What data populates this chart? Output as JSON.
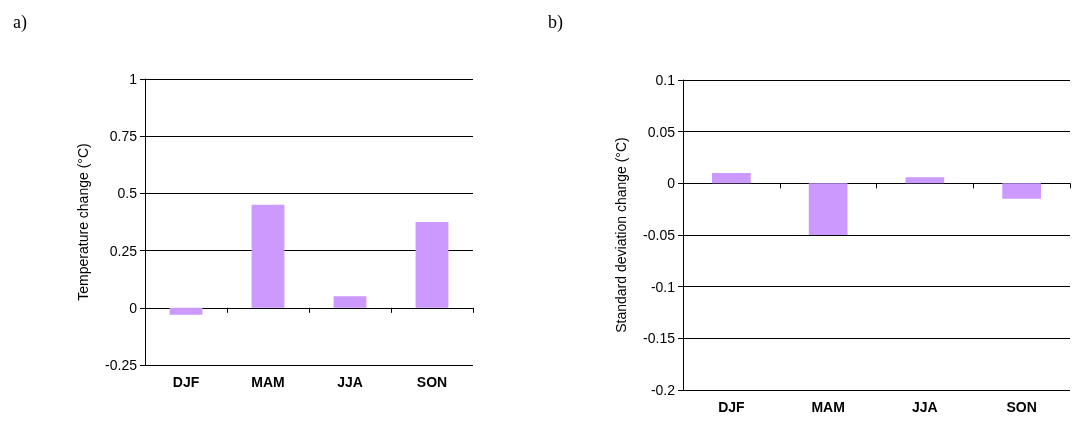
{
  "chart_data": [
    {
      "type": "bar",
      "title": "a)",
      "ylabel": "Temperature change (°C)",
      "categories": [
        "DJF",
        "MAM",
        "JJA",
        "SON"
      ],
      "values": [
        -0.03,
        0.45,
        0.05,
        0.375
      ],
      "color": "#cc99ff",
      "ylim": [
        -0.25,
        1
      ],
      "yticks": [
        -0.25,
        0,
        0.25,
        0.5,
        0.75,
        1
      ],
      "grid": "y"
    },
    {
      "type": "bar",
      "title": "b)",
      "ylabel": "Standard deviation change (°C)",
      "categories": [
        "DJF",
        "MAM",
        "JJA",
        "SON"
      ],
      "values": [
        0.01,
        -0.05,
        0.006,
        -0.015
      ],
      "color": "#cc99ff",
      "ylim": [
        -0.2,
        0.1
      ],
      "yticks": [
        -0.2,
        -0.15,
        -0.1,
        -0.05,
        0,
        0.05,
        0.1
      ],
      "grid": "y"
    }
  ]
}
